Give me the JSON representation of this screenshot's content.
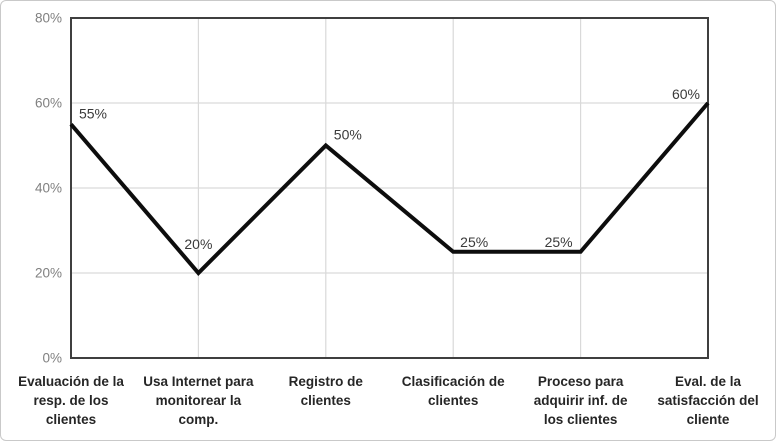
{
  "chart_data": {
    "type": "line",
    "title": "",
    "xlabel": "",
    "ylabel": "",
    "categories": [
      "Evaluación de la resp. de los clientes",
      "Usa Internet para monitorear la comp.",
      "Registro de clientes",
      "Clasificación de clientes",
      "Proceso para adquirir inf. de los clientes",
      "Eval. de la satisfacción del cliente"
    ],
    "categories_lines": [
      [
        "Evaluación de la",
        "resp. de los",
        "clientes"
      ],
      [
        "Usa Internet para",
        "monitorear la",
        "comp."
      ],
      [
        "Registro de",
        "clientes"
      ],
      [
        "Clasificación de",
        "clientes"
      ],
      [
        "Proceso para",
        "adquirir inf. de",
        "los clientes"
      ],
      [
        "Eval. de la",
        "satisfacción del",
        "cliente"
      ]
    ],
    "values": [
      55,
      20,
      50,
      25,
      25,
      60
    ],
    "data_labels": [
      "55%",
      "20%",
      "50%",
      "25%",
      "25%",
      "60%"
    ],
    "y_tick_values": [
      0,
      20,
      40,
      60,
      80
    ],
    "y_tick_labels": [
      "0%",
      "20%",
      "40%",
      "60%",
      "80%"
    ],
    "ylim": [
      0,
      80
    ],
    "grid": true,
    "legend": "none",
    "colors": {
      "series_line": "#0d0d0d",
      "plot_border": "#3f3f3f",
      "gridline": "#d9d9d9",
      "tick_label": "#808080",
      "category_label": "#262626",
      "data_label": "#3a3a3a",
      "background": "#ffffff",
      "outer_border": "#c9c9c9"
    }
  }
}
